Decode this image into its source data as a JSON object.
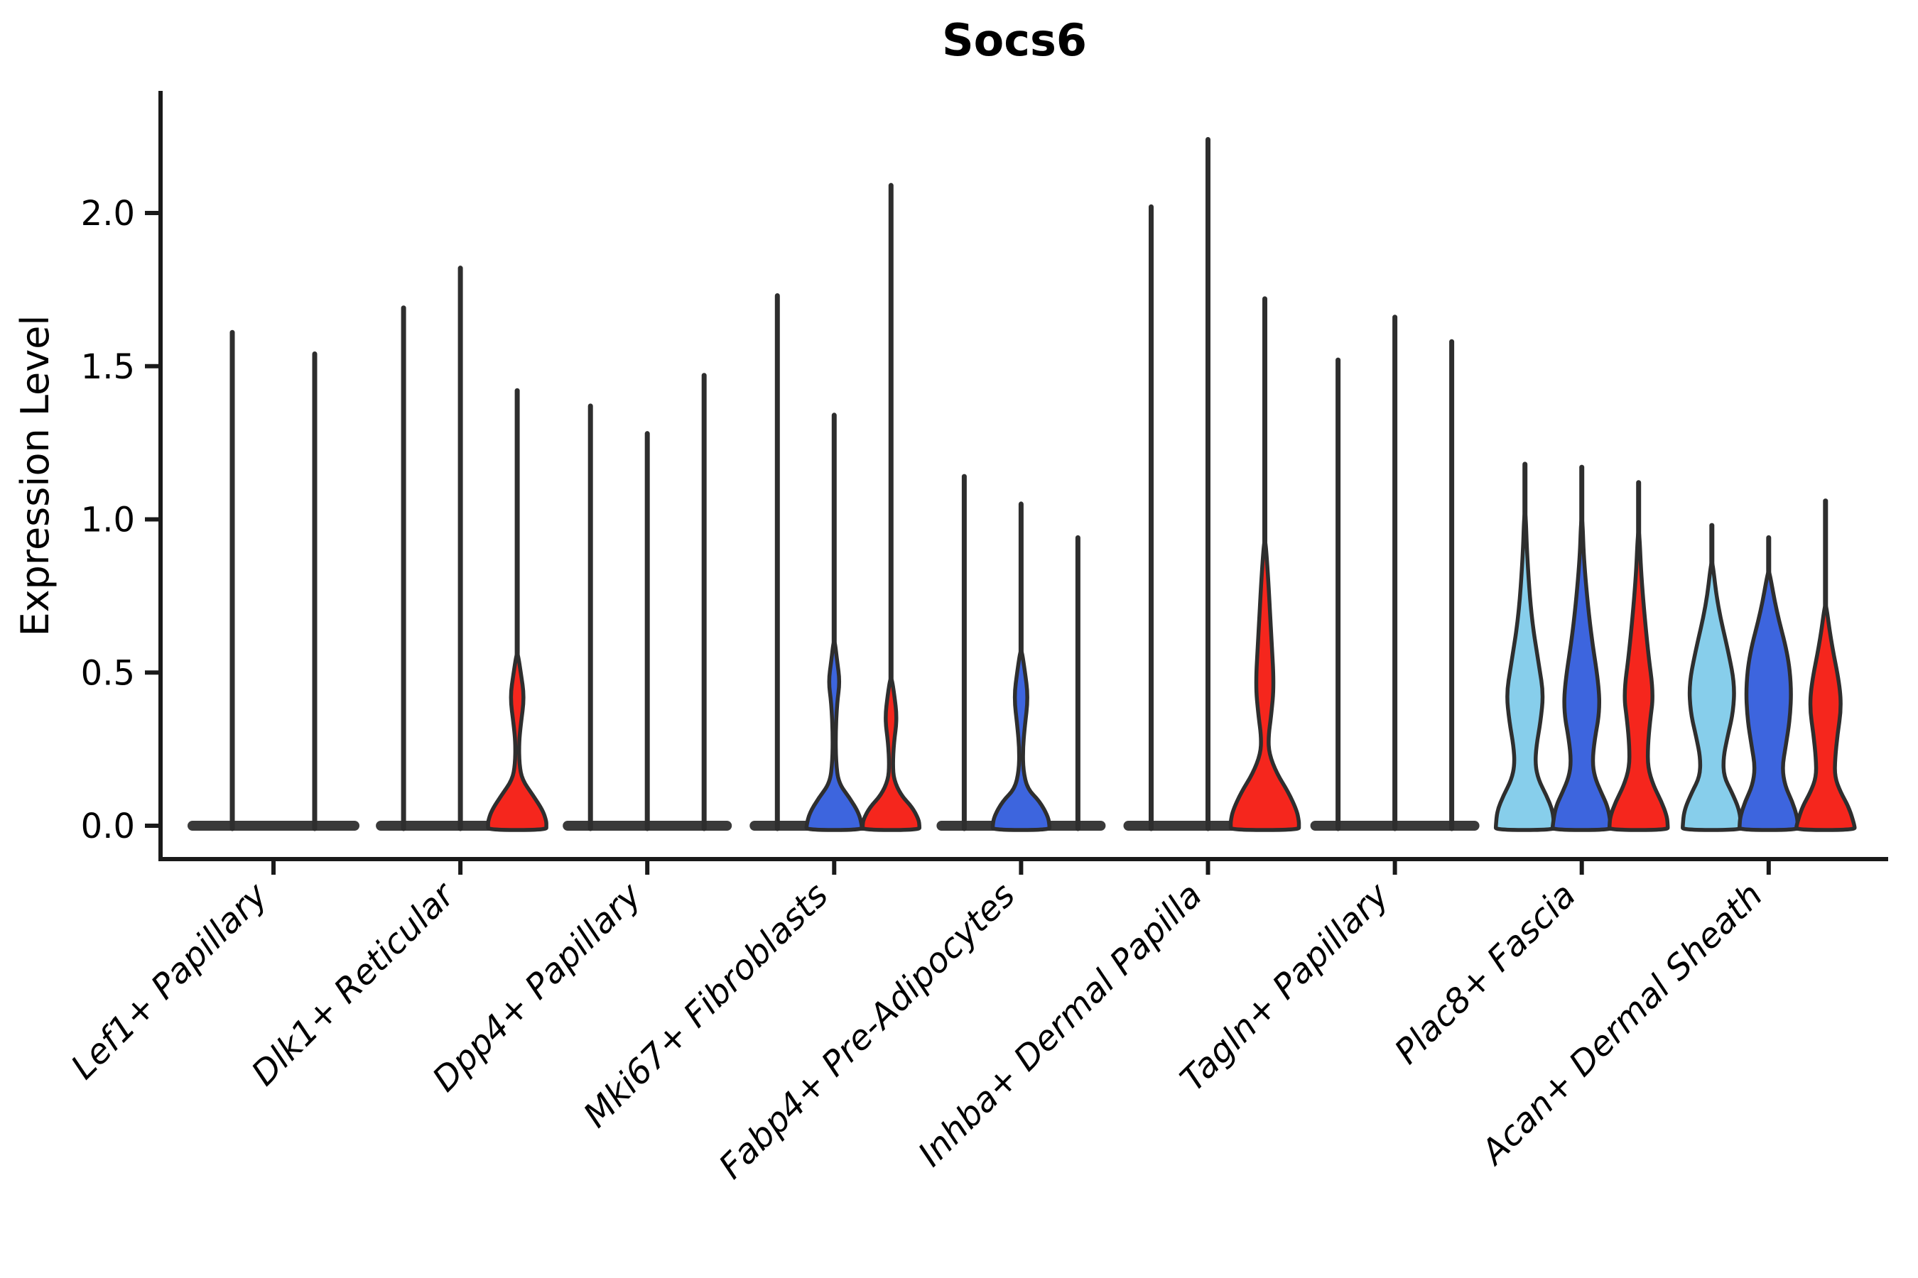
{
  "chart": {
    "title": "Socs6",
    "ylabel": "Expression Level",
    "axis_color": "#1a1a1a",
    "outline_color": "#2e2e2e",
    "base_bar_color": "#3a3a3a",
    "background": "#ffffff",
    "chart_data": {
      "type": "violin",
      "title": "Socs6",
      "xlabel": "",
      "ylabel": "Expression Level",
      "ylim": [
        0,
        2.35
      ],
      "ytick_labels": [
        "0.0",
        "0.5",
        "1.0",
        "1.5",
        "2.0"
      ],
      "ytick_values": [
        0,
        0.5,
        1.0,
        1.5,
        2.0
      ],
      "grid": false,
      "legend": "none",
      "split_colors": {
        "light_blue": "#87CEEB",
        "dark_blue": "#3D65DE",
        "red": "#F5261D"
      },
      "categories": [
        "Lef1+ Papillary",
        "Dlk1+ Reticular",
        "Dpp4+ Papillary",
        "Mki67+ Fibroblasts",
        "Fabp4+ Pre-Adipocytes",
        "Inhba+ Dermal Papilla",
        "Tagln+ Papillary",
        "Plac8+ Fascia",
        "Acan+ Dermal Sheath"
      ],
      "groups": [
        {
          "category": "Lef1+ Papillary",
          "bar_halfwidth": 122,
          "violins": [
            {
              "color": "#87CEEB",
              "max": 1.61,
              "offset": -58,
              "profile": null
            },
            {
              "color": "#3D65DE",
              "max": 1.54,
              "offset": 58,
              "profile": null
            }
          ]
        },
        {
          "category": "Dlk1+ Reticular",
          "bar_halfwidth": 120,
          "violins": [
            {
              "color": "#87CEEB",
              "max": 1.69,
              "offset": -80,
              "profile": null
            },
            {
              "color": "#3D65DE",
              "max": 1.82,
              "offset": 0,
              "profile": null
            },
            {
              "color": "#F5261D",
              "max": 1.42,
              "offset": 80,
              "profile": [
                [
                  0.56,
                  1
                ],
                [
                  0.5,
                  5
                ],
                [
                  0.42,
                  10
                ],
                [
                  0.33,
                  5
                ],
                [
                  0.27,
                  2.5
                ],
                [
                  0.2,
                  3
                ],
                [
                  0.15,
                  7
                ],
                [
                  0.1,
                  22
                ],
                [
                  0.05,
                  36
                ],
                [
                  0.015,
                  41
                ],
                [
                  0,
                  41
                ]
              ]
            }
          ]
        },
        {
          "category": "Dpp4+ Papillary",
          "bar_halfwidth": 120,
          "violins": [
            {
              "color": "#87CEEB",
              "max": 1.37,
              "offset": -80,
              "profile": null
            },
            {
              "color": "#3D65DE",
              "max": 1.28,
              "offset": 0,
              "profile": null
            },
            {
              "color": "#F5261D",
              "max": 1.47,
              "offset": 80,
              "profile": null
            }
          ]
        },
        {
          "category": "Mki67+ Fibroblasts",
          "bar_halfwidth": 120,
          "violins": [
            {
              "color": "#87CEEB",
              "max": 1.73,
              "offset": -80,
              "profile": null
            },
            {
              "color": "#3D65DE",
              "max": 1.34,
              "offset": 0,
              "profile": [
                [
                  0.6,
                  1
                ],
                [
                  0.54,
                  4
                ],
                [
                  0.47,
                  8
                ],
                [
                  0.4,
                  4
                ],
                [
                  0.3,
                  2
                ],
                [
                  0.21,
                  2.5
                ],
                [
                  0.14,
                  6
                ],
                [
                  0.09,
                  22
                ],
                [
                  0.04,
                  35
                ],
                [
                  0,
                  39
                ]
              ]
            },
            {
              "color": "#F5261D",
              "max": 2.09,
              "offset": 80,
              "profile": [
                [
                  0.48,
                  1
                ],
                [
                  0.43,
                  4.5
                ],
                [
                  0.35,
                  8.5
                ],
                [
                  0.27,
                  4
                ],
                [
                  0.2,
                  2.5
                ],
                [
                  0.15,
                  4
                ],
                [
                  0.1,
                  14
                ],
                [
                  0.06,
                  30
                ],
                [
                  0.02,
                  39
                ],
                [
                  0,
                  40
                ]
              ]
            }
          ]
        },
        {
          "category": "Fabp4+ Pre-Adipocytes",
          "bar_halfwidth": 120,
          "violins": [
            {
              "color": "#87CEEB",
              "max": 1.14,
              "offset": -80,
              "profile": null
            },
            {
              "color": "#3D65DE",
              "max": 1.05,
              "offset": 0,
              "profile": [
                [
                  0.57,
                  1
                ],
                [
                  0.51,
                  5
                ],
                [
                  0.42,
                  10
                ],
                [
                  0.32,
                  5
                ],
                [
                  0.25,
                  2.5
                ],
                [
                  0.18,
                  3
                ],
                [
                  0.12,
                  9
                ],
                [
                  0.08,
                  26
                ],
                [
                  0.03,
                  38
                ],
                [
                  0,
                  40
                ]
              ]
            },
            {
              "color": "#F5261D",
              "max": 0.94,
              "offset": 80,
              "profile": null
            }
          ]
        },
        {
          "category": "Inhba+ Dermal Papilla",
          "bar_halfwidth": 120,
          "violins": [
            {
              "color": "#87CEEB",
              "max": 2.02,
              "offset": -80,
              "profile": null
            },
            {
              "color": "#3D65DE",
              "max": 2.24,
              "offset": 0,
              "profile": null
            },
            {
              "color": "#F5261D",
              "max": 1.72,
              "offset": 80,
              "profile": [
                [
                  0.93,
                  1
                ],
                [
                  0.8,
                  5
                ],
                [
                  0.62,
                  9
                ],
                [
                  0.46,
                  13
                ],
                [
                  0.36,
                  9
                ],
                [
                  0.29,
                  5
                ],
                [
                  0.235,
                  6
                ],
                [
                  0.17,
                  17
                ],
                [
                  0.11,
                  33
                ],
                [
                  0.05,
                  45
                ],
                [
                  0.015,
                  48
                ],
                [
                  0,
                  48
                ]
              ]
            }
          ]
        },
        {
          "category": "Tagln+ Papillary",
          "bar_halfwidth": 120,
          "violins": [
            {
              "color": "#87CEEB",
              "max": 1.52,
              "offset": -80,
              "profile": null
            },
            {
              "color": "#3D65DE",
              "max": 1.66,
              "offset": 0,
              "profile": null
            },
            {
              "color": "#F5261D",
              "max": 1.58,
              "offset": 80,
              "profile": null
            }
          ]
        },
        {
          "category": "Plac8+ Fascia",
          "bar_halfwidth": 120,
          "violins": [
            {
              "color": "#87CEEB",
              "max": 1.18,
              "offset": -80,
              "profile": [
                [
                  1.02,
                  1
                ],
                [
                  0.88,
                  3
                ],
                [
                  0.68,
                  9
                ],
                [
                  0.52,
                  20
                ],
                [
                  0.43,
                  26
                ],
                [
                  0.34,
                  22
                ],
                [
                  0.26,
                  16
                ],
                [
                  0.2,
                  14.5
                ],
                [
                  0.15,
                  19
                ],
                [
                  0.1,
                  30
                ],
                [
                  0.05,
                  39
                ],
                [
                  0,
                  41
                ]
              ]
            },
            {
              "color": "#3D65DE",
              "max": 1.17,
              "offset": 0,
              "profile": [
                [
                  1.0,
                  1
                ],
                [
                  0.86,
                  3
                ],
                [
                  0.64,
                  12
                ],
                [
                  0.46,
                  24
                ],
                [
                  0.37,
                  25
                ],
                [
                  0.28,
                  18
                ],
                [
                  0.21,
                  15
                ],
                [
                  0.16,
                  18
                ],
                [
                  0.11,
                  27
                ],
                [
                  0.06,
                  37
                ],
                [
                  0,
                  41
                ]
              ]
            },
            {
              "color": "#F5261D",
              "max": 1.12,
              "offset": 80,
              "profile": [
                [
                  0.96,
                  1
                ],
                [
                  0.8,
                  4
                ],
                [
                  0.57,
                  13
                ],
                [
                  0.43,
                  21
                ],
                [
                  0.34,
                  16
                ],
                [
                  0.26,
                  13
                ],
                [
                  0.19,
                  13
                ],
                [
                  0.13,
                  21
                ],
                [
                  0.08,
                  32
                ],
                [
                  0.03,
                  40
                ],
                [
                  0,
                  41
                ]
              ]
            }
          ]
        },
        {
          "category": "Acan+ Dermal Sheath",
          "bar_halfwidth": 120,
          "violins": [
            {
              "color": "#87CEEB",
              "max": 0.98,
              "offset": -80,
              "profile": [
                [
                  0.86,
                  1
                ],
                [
                  0.72,
                  8
                ],
                [
                  0.56,
                  24
                ],
                [
                  0.46,
                  32
                ],
                [
                  0.37,
                  30
                ],
                [
                  0.29,
                  22
                ],
                [
                  0.22,
                  16
                ],
                [
                  0.16,
                  17
                ],
                [
                  0.11,
                  28
                ],
                [
                  0.05,
                  39
                ],
                [
                  0,
                  41
                ]
              ]
            },
            {
              "color": "#3D65DE",
              "max": 0.94,
              "offset": 0,
              "profile": [
                [
                  0.83,
                  1
                ],
                [
                  0.7,
                  11
                ],
                [
                  0.56,
                  27
                ],
                [
                  0.45,
                  32
                ],
                [
                  0.35,
                  30
                ],
                [
                  0.26,
                  24
                ],
                [
                  0.19,
                  19
                ],
                [
                  0.13,
                  23
                ],
                [
                  0.08,
                  33
                ],
                [
                  0.03,
                  40
                ],
                [
                  0,
                  41
                ]
              ]
            },
            {
              "color": "#F5261D",
              "max": 1.06,
              "offset": 80,
              "profile": [
                [
                  0.72,
                  1
                ],
                [
                  0.6,
                  8
                ],
                [
                  0.46,
                  20
                ],
                [
                  0.38,
                  22
                ],
                [
                  0.3,
                  17
                ],
                [
                  0.22,
                  13.5
                ],
                [
                  0.16,
                  13
                ],
                [
                  0.11,
                  21
                ],
                [
                  0.06,
                  33
                ],
                [
                  0,
                  41
                ]
              ]
            }
          ]
        }
      ]
    }
  }
}
